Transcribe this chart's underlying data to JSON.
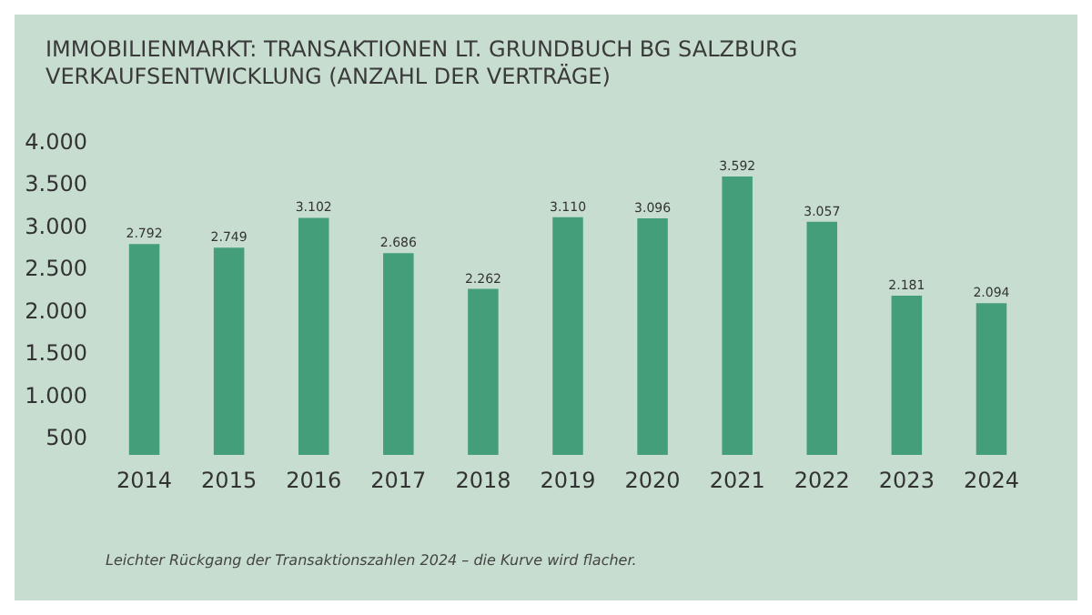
{
  "chart_data": {
    "type": "bar",
    "title": "IMMOBILIENMARKT: TRANSAKTIONEN LT. GRUNDBUCH BG SALZBURG",
    "subtitle": "VERKAUFSENTWICKLUNG (ANZAHL DER VERTRÄGE)",
    "categories": [
      "2014",
      "2015",
      "2016",
      "2017",
      "2018",
      "2019",
      "2020",
      "2021",
      "2022",
      "2023",
      "2024"
    ],
    "values": [
      2792,
      2749,
      3102,
      2686,
      2262,
      3110,
      3096,
      3592,
      3057,
      2181,
      2094
    ],
    "value_labels": [
      "2.792",
      "2.749",
      "3.102",
      "2.686",
      "2.262",
      "3.110",
      "3.096",
      "3.592",
      "3.057",
      "2.181",
      "2.094"
    ],
    "color": "#459e7a",
    "ylim": [
      300,
      4000
    ],
    "yticks": [
      {
        "value": 500,
        "label": "500"
      },
      {
        "value": 1000,
        "label": "1.000"
      },
      {
        "value": 1500,
        "label": "1.500"
      },
      {
        "value": 2000,
        "label": "2.000"
      },
      {
        "value": 2500,
        "label": "2.500"
      },
      {
        "value": 3000,
        "label": "3.000"
      },
      {
        "value": 3500,
        "label": "3.500"
      },
      {
        "value": 4000,
        "label": "4.000"
      }
    ],
    "grid": false,
    "annotations": [
      "Leichter Rückgang der Transaktionszahlen 2024 – die Kurve wird flacher."
    ]
  }
}
